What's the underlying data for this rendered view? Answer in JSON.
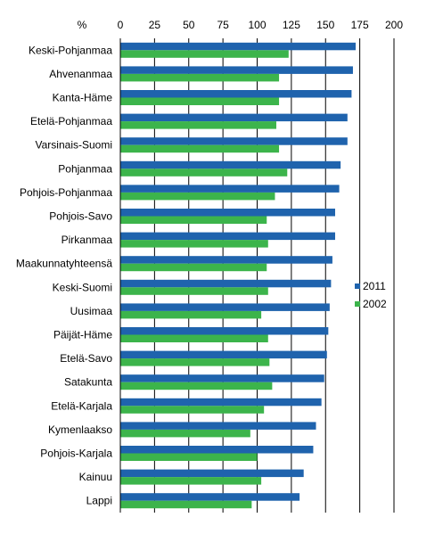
{
  "chart_data": {
    "type": "bar",
    "orientation": "horizontal",
    "unit_label": "%",
    "xlim": [
      0,
      200
    ],
    "xticks": [
      0,
      25,
      50,
      75,
      100,
      125,
      150,
      175,
      200
    ],
    "grid": true,
    "legend_position": "right",
    "categories": [
      "Keski-Pohjanmaa",
      "Ahvenanmaa",
      "Kanta-Häme",
      "Etelä-Pohjanmaa",
      "Varsinais-Suomi",
      "Pohjanmaa",
      "Pohjois-Pohjanmaa",
      "Pohjois-Savo",
      "Pirkanmaa",
      "Maakunnatyhteensä",
      "Keski-Suomi",
      "Uusimaa",
      "Päijät-Häme",
      "Etelä-Savo",
      "Satakunta",
      "Etelä-Karjala",
      "Kymenlaakso",
      "Pohjois-Karjala",
      "Kainuu",
      "Lappi"
    ],
    "series": [
      {
        "name": "2011",
        "color": "#1f63ad",
        "values": [
          172,
          170,
          169,
          166,
          166,
          161,
          160,
          157,
          157,
          155,
          154,
          153,
          152,
          151,
          149,
          147,
          143,
          141,
          134,
          131
        ]
      },
      {
        "name": "2002",
        "color": "#3cb44b",
        "values": [
          123,
          116,
          116,
          114,
          116,
          122,
          113,
          107,
          108,
          107,
          108,
          103,
          108,
          109,
          111,
          105,
          95,
          100,
          103,
          96
        ]
      }
    ]
  }
}
